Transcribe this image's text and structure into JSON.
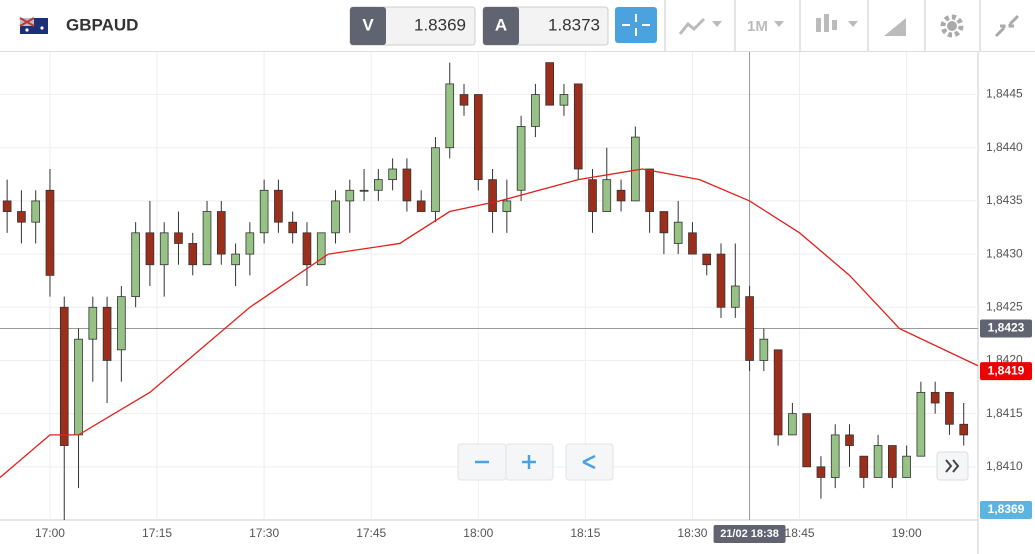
{
  "toolbar": {
    "symbol": "GBPAUD",
    "bid_label": "V",
    "bid": 1.8369,
    "ask_label": "A",
    "ask": 1.8373,
    "timeframe": "1M"
  },
  "chart_data": {
    "type": "candlestick",
    "x": [
      1014,
      1016,
      1018,
      1020,
      1022,
      1024,
      1026,
      1028,
      1030,
      1032,
      1034,
      1036,
      1038,
      1040,
      1042,
      1044,
      1046,
      1048,
      1050,
      1052,
      1054,
      1056,
      1058,
      1060,
      1062,
      1064,
      1066,
      1068,
      1070,
      1072,
      1074,
      1076,
      1078,
      1080,
      1082,
      1084,
      1086,
      1088,
      1090,
      1092,
      1094,
      1096,
      1098,
      1100,
      1102,
      1104,
      1106,
      1108,
      1110,
      1112,
      1114,
      1116,
      1118,
      1120,
      1122,
      1124,
      1126,
      1128,
      1130,
      1132,
      1134,
      1136,
      1138,
      1140,
      1142,
      1144,
      1146,
      1148
    ],
    "open": [
      1.8435,
      1.8434,
      1.8433,
      1.8436,
      1.8425,
      1.8413,
      1.8422,
      1.8425,
      1.8421,
      1.8426,
      1.8432,
      1.8429,
      1.8432,
      1.8431,
      1.8429,
      1.8434,
      1.8429,
      1.843,
      1.8432,
      1.8436,
      1.8433,
      1.8432,
      1.8429,
      1.8432,
      1.8435,
      1.8436,
      1.8436,
      1.8437,
      1.8438,
      1.8435,
      1.8434,
      1.844,
      1.8445,
      1.8445,
      1.8437,
      1.8434,
      1.8436,
      1.8442,
      1.8448,
      1.8444,
      1.8446,
      1.8437,
      1.8434,
      1.8436,
      1.8435,
      1.8438,
      1.8434,
      1.8431,
      1.8432,
      1.843,
      1.843,
      1.8425,
      1.8426,
      1.842,
      1.8421,
      1.8413,
      1.8415,
      1.841,
      1.8409,
      1.8413,
      1.8411,
      1.8409,
      1.8412,
      1.8409,
      1.8411,
      1.8417,
      1.8417,
      1.8414
    ],
    "high": [
      1.8437,
      1.8436,
      1.8436,
      1.8438,
      1.8426,
      1.8423,
      1.8426,
      1.8426,
      1.8427,
      1.8433,
      1.8435,
      1.8433,
      1.8434,
      1.8432,
      1.8435,
      1.8435,
      1.8431,
      1.8433,
      1.8437,
      1.8437,
      1.8434,
      1.8433,
      1.8432,
      1.8436,
      1.8437,
      1.8438,
      1.8438,
      1.8439,
      1.8439,
      1.8436,
      1.8441,
      1.8448,
      1.8446,
      1.8445,
      1.8438,
      1.8437,
      1.8443,
      1.8446,
      1.8448,
      1.8446,
      1.8446,
      1.8438,
      1.844,
      1.8437,
      1.8442,
      1.8438,
      1.8434,
      1.8435,
      1.8433,
      1.843,
      1.8431,
      1.8431,
      1.8427,
      1.8423,
      1.8421,
      1.8416,
      1.8415,
      1.8411,
      1.8414,
      1.8414,
      1.8411,
      1.8413,
      1.8412,
      1.8412,
      1.8418,
      1.8418,
      1.8417,
      1.8416
    ],
    "low": [
      1.8432,
      1.8431,
      1.8431,
      1.8426,
      1.8405,
      1.8408,
      1.8418,
      1.8416,
      1.8418,
      1.8425,
      1.8427,
      1.8426,
      1.8429,
      1.8428,
      1.8429,
      1.8429,
      1.8427,
      1.8428,
      1.8431,
      1.8432,
      1.8431,
      1.8427,
      1.8429,
      1.8431,
      1.8432,
      1.8435,
      1.8435,
      1.8436,
      1.8434,
      1.8434,
      1.8433,
      1.8439,
      1.8443,
      1.8436,
      1.8432,
      1.8432,
      1.8435,
      1.8441,
      1.8444,
      1.8443,
      1.8437,
      1.8432,
      1.8434,
      1.8434,
      1.8435,
      1.8432,
      1.843,
      1.843,
      1.843,
      1.8428,
      1.8424,
      1.8424,
      1.8419,
      1.8419,
      1.8412,
      1.8413,
      1.841,
      1.8407,
      1.8408,
      1.841,
      1.8408,
      1.8409,
      1.8408,
      1.8409,
      1.8411,
      1.8415,
      1.8413,
      1.8412
    ],
    "close": [
      1.8434,
      1.8433,
      1.8435,
      1.8428,
      1.8412,
      1.8422,
      1.8425,
      1.842,
      1.8426,
      1.8432,
      1.8429,
      1.8432,
      1.8431,
      1.8429,
      1.8434,
      1.843,
      1.843,
      1.8432,
      1.8436,
      1.8433,
      1.8432,
      1.8429,
      1.8432,
      1.8435,
      1.8436,
      1.8436,
      1.8437,
      1.8438,
      1.8435,
      1.8434,
      1.844,
      1.8446,
      1.8444,
      1.8437,
      1.8434,
      1.8435,
      1.8442,
      1.8445,
      1.8444,
      1.8445,
      1.8438,
      1.8434,
      1.8437,
      1.8435,
      1.8441,
      1.8434,
      1.8432,
      1.8433,
      1.843,
      1.8429,
      1.8425,
      1.8427,
      1.842,
      1.8422,
      1.8413,
      1.8415,
      1.841,
      1.8409,
      1.8413,
      1.8412,
      1.8409,
      1.8412,
      1.8409,
      1.8411,
      1.8417,
      1.8416,
      1.8414,
      1.8413
    ],
    "up_color": "#96c286",
    "down_color": "#9b2f1c",
    "ma": {
      "x": [
        1013,
        1020,
        1024,
        1034,
        1048,
        1059,
        1069,
        1076,
        1083,
        1094,
        1103,
        1111,
        1118,
        1125,
        1132,
        1139,
        1150
      ],
      "values": [
        1.8409,
        1.8413,
        1.8413,
        1.8417,
        1.8425,
        1.843,
        1.8431,
        1.8434,
        1.8435,
        1.8437,
        1.8438,
        1.8437,
        1.8435,
        1.8432,
        1.8428,
        1.8423,
        1.84195
      ],
      "color": "#e0201c"
    },
    "xlim": [
      1013,
      1150
    ],
    "ylim": [
      1.8405,
      1.8449
    ],
    "xticks": [
      {
        "value": 1020,
        "label": "17:00"
      },
      {
        "value": 1035,
        "label": "17:15"
      },
      {
        "value": 1050,
        "label": "17:30"
      },
      {
        "value": 1065,
        "label": "17:45"
      },
      {
        "value": 1080,
        "label": "18:00"
      },
      {
        "value": 1095,
        "label": "18:15"
      },
      {
        "value": 1110,
        "label": "18:30"
      },
      {
        "value": 1125,
        "label": "18:45"
      },
      {
        "value": 1140,
        "label": "19:00"
      }
    ],
    "yticks": [
      {
        "value": 1.841,
        "label": "1,8410"
      },
      {
        "value": 1.8415,
        "label": "1,8415"
      },
      {
        "value": 1.842,
        "label": "1,8420"
      },
      {
        "value": 1.8425,
        "label": "1,8425"
      },
      {
        "value": 1.843,
        "label": "1,8430"
      },
      {
        "value": 1.8435,
        "label": "1,8435"
      },
      {
        "value": 1.844,
        "label": "1,8440"
      },
      {
        "value": 1.8445,
        "label": "1,8445"
      }
    ],
    "grid": true,
    "crosshair": {
      "x": 1118,
      "y": 1.8423,
      "x_label": "21/02 18:38",
      "y_label": "1,8423"
    },
    "last_price": {
      "value": 1.8419,
      "label": "1,8419",
      "color": "#ee0000"
    },
    "bid_tag": "1,8369"
  }
}
